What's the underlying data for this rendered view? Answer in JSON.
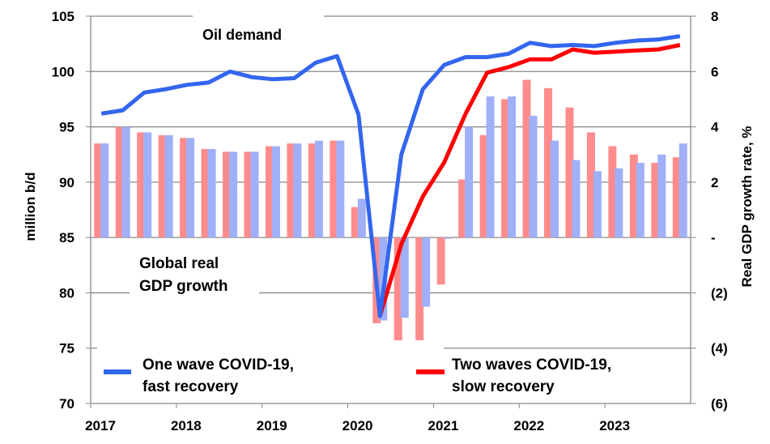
{
  "chart_data": {
    "type": "bar+line",
    "annotations": {
      "oil": "Oil demand",
      "gdp_line1": "Global real",
      "gdp_line2": "GDP growth"
    },
    "ylabel_left": "million b/d",
    "ylabel_right": "Real GDP growth rate, %",
    "ylim_left": [
      70,
      105
    ],
    "ylim_right": [
      -6,
      8
    ],
    "yticks_left": [
      "70",
      "75",
      "80",
      "85",
      "90",
      "95",
      "100",
      "105"
    ],
    "yticks_right": [
      "(6)",
      "(4)",
      "(2)",
      "-",
      "2",
      "4",
      "6",
      "8"
    ],
    "xtick_labels": [
      "2017",
      "2018",
      "2019",
      "2020",
      "2021",
      "2022",
      "2023"
    ],
    "grid": true,
    "categories": [
      "2017Q1",
      "2017Q2",
      "2017Q3",
      "2017Q4",
      "2018Q1",
      "2018Q2",
      "2018Q3",
      "2018Q4",
      "2019Q1",
      "2019Q2",
      "2019Q3",
      "2019Q4",
      "2020Q1",
      "2020Q2",
      "2020Q3",
      "2020Q4",
      "2021Q1",
      "2021Q2",
      "2021Q3",
      "2021Q4",
      "2022Q1",
      "2022Q2",
      "2022Q3",
      "2022Q4",
      "2023Q1",
      "2023Q2",
      "2023Q3",
      "2023Q4"
    ],
    "series": [
      {
        "name": "One wave COVID-19, fast recovery",
        "kind": "line",
        "axis": "left",
        "color": "#3366EE",
        "values": [
          96.2,
          96.5,
          98.1,
          98.4,
          98.8,
          99.0,
          100.0,
          99.5,
          99.3,
          99.4,
          100.8,
          101.4,
          96.1,
          77.9,
          92.5,
          98.4,
          100.6,
          101.3,
          101.3,
          101.6,
          102.6,
          102.3,
          102.4,
          102.3,
          102.6,
          102.8,
          102.9,
          103.2
        ]
      },
      {
        "name": "Two waves COVID-19, slow recovery",
        "kind": "line",
        "axis": "left",
        "color": "#FF0000",
        "values": [
          null,
          null,
          null,
          null,
          null,
          null,
          null,
          null,
          null,
          null,
          null,
          null,
          null,
          77.9,
          84.4,
          88.7,
          91.8,
          96.2,
          99.9,
          100.4,
          101.1,
          101.1,
          102.0,
          101.7,
          101.8,
          101.9,
          102.0,
          102.4
        ]
      },
      {
        "kind": "bar",
        "axis": "right",
        "color": "#FF8C8C",
        "values": [
          3.4,
          4.0,
          3.8,
          3.7,
          3.6,
          3.2,
          3.1,
          3.1,
          3.3,
          3.4,
          3.4,
          3.5,
          1.1,
          -3.1,
          -3.8,
          -4.4,
          -1.7,
          2.1,
          3.7,
          5.0,
          5.7,
          5.4,
          4.7,
          3.8,
          3.3,
          3.0,
          2.7,
          2.9
        ]
      },
      {
        "kind": "bar",
        "axis": "right",
        "color": "#A0B0F8",
        "values": [
          3.4,
          4.0,
          3.8,
          3.7,
          3.6,
          3.2,
          3.1,
          3.1,
          3.3,
          3.4,
          3.5,
          3.5,
          1.4,
          -3.0,
          -2.9,
          -2.5,
          0.0,
          4.0,
          5.1,
          5.1,
          4.4,
          3.5,
          2.8,
          2.4,
          2.5,
          2.7,
          3.0,
          3.4
        ]
      }
    ],
    "legend": [
      {
        "label_line1": "One wave COVID-19,",
        "label_line2": "fast recovery",
        "color": "#3366EE"
      },
      {
        "label_line1": "Two waves COVID-19,",
        "label_line2": "slow recovery",
        "color": "#FF0000"
      }
    ]
  }
}
